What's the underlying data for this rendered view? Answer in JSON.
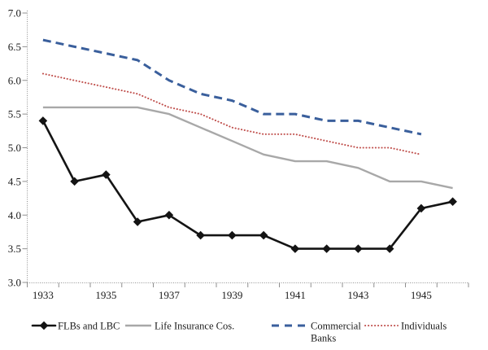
{
  "chart_data": {
    "type": "line",
    "title": "",
    "xlabel": "",
    "ylabel": "",
    "x": [
      1933,
      1934,
      1935,
      1936,
      1937,
      1938,
      1939,
      1940,
      1941,
      1942,
      1943,
      1944,
      1945,
      1946
    ],
    "x_tick_labels": [
      "1933",
      "1935",
      "1937",
      "1939",
      "1941",
      "1943",
      "1945"
    ],
    "ylim": [
      3.0,
      7.0
    ],
    "y_tick_step": 0.5,
    "y_tick_labels": [
      "7.0",
      "6.5",
      "6.0",
      "5.5",
      "5.0",
      "4.5",
      "4.0",
      "3.5",
      "3.0"
    ],
    "grid": false,
    "legend_position": "bottom",
    "axis_color": "#8f8f8f",
    "text_color": "#1a1a1a",
    "series": [
      {
        "name": "FLBs and LBC",
        "color": "#141414",
        "style": "solid-diamond",
        "marker": "diamond",
        "values": [
          5.4,
          4.5,
          4.6,
          3.9,
          4.0,
          3.7,
          3.7,
          3.7,
          3.5,
          3.5,
          3.5,
          3.5,
          4.1,
          4.2
        ]
      },
      {
        "name": "Life Insurance Cos.",
        "color": "#a8a8a8",
        "style": "solid",
        "marker": "none",
        "values": [
          5.6,
          5.6,
          5.6,
          5.6,
          5.5,
          5.3,
          5.1,
          4.9,
          4.8,
          4.8,
          4.7,
          4.5,
          4.5,
          4.4
        ]
      },
      {
        "name": "Commercial Banks",
        "legend_lines": [
          "Commercial",
          "Banks"
        ],
        "color": "#3a5f9c",
        "style": "dashed",
        "marker": "none",
        "values": [
          6.6,
          6.5,
          6.4,
          6.3,
          6.0,
          5.8,
          5.7,
          5.5,
          5.5,
          5.4,
          5.4,
          5.3,
          5.2,
          null
        ]
      },
      {
        "name": "Individuals",
        "color": "#c0504d",
        "style": "dotted",
        "marker": "none",
        "values": [
          6.1,
          6.0,
          5.9,
          5.8,
          5.6,
          5.5,
          5.3,
          5.2,
          5.2,
          5.1,
          5.0,
          5.0,
          4.9,
          null
        ]
      }
    ]
  }
}
